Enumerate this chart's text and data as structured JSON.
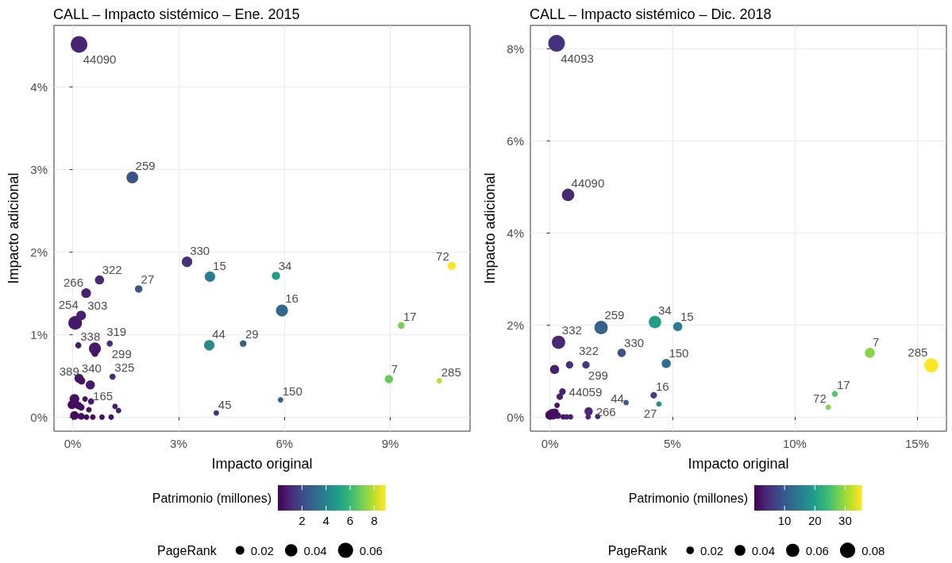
{
  "chart_data": [
    {
      "type": "bubble",
      "title": "CALL – Impacto sistémico – Ene. 2015",
      "xlabel": "Impacto original",
      "ylabel": "Impacto adicional",
      "clabel": "Patrimonio (millones)",
      "legend_title": "PageRank",
      "xlim": [
        -0.53,
        11.26
      ],
      "ylim": [
        -0.17,
        4.74
      ],
      "xticks": [
        {
          "value": 0,
          "label": "0%"
        },
        {
          "value": 3,
          "label": "3%"
        },
        {
          "value": 6,
          "label": "6%"
        },
        {
          "value": 9,
          "label": "9%"
        }
      ],
      "yticks": [
        {
          "value": 0,
          "label": "0%"
        },
        {
          "value": 1,
          "label": "1%"
        },
        {
          "value": 2,
          "label": "2%"
        },
        {
          "value": 3,
          "label": "3%"
        },
        {
          "value": 4,
          "label": "4%"
        }
      ],
      "grid": true,
      "clim": [
        0,
        8.9
      ],
      "cticks": [
        2,
        4,
        6,
        8
      ],
      "size_legend": [
        0.02,
        0.04,
        0.06
      ],
      "x": [
        0.18,
        1.69,
        3.24,
        0.76,
        0.38,
        1.87,
        3.89,
        5.76,
        5.93,
        0.24,
        0.07,
        0.16,
        0.63,
        0.63,
        1.05,
        3.87,
        4.83,
        0.18,
        0.25,
        0.5,
        1.13,
        4.07,
        5.89,
        10.74,
        9.31,
        8.96,
        10.39,
        0.05,
        -0.02,
        0.16,
        0.35,
        0.52,
        0.46,
        1.2,
        1.3,
        0.05,
        0.24,
        0.39,
        0.57,
        0.83,
        1.09,
        0.24
      ],
      "values": [
        4.51,
        2.9,
        1.88,
        1.66,
        1.5,
        1.55,
        1.7,
        1.71,
        1.29,
        1.23,
        1.14,
        0.87,
        0.83,
        0.77,
        0.89,
        0.87,
        0.89,
        0.47,
        0.44,
        0.39,
        0.49,
        0.05,
        0.21,
        1.83,
        1.11,
        0.46,
        0.44,
        0.22,
        0.15,
        0.14,
        0.22,
        0.19,
        0.09,
        0.13,
        0.08,
        0.02,
        0.01,
        0.0,
        0.0,
        0.0,
        0.0,
        0.12
      ],
      "sizes": [
        0.073,
        0.036,
        0.029,
        0.022,
        0.025,
        0.015,
        0.029,
        0.018,
        0.038,
        0.025,
        0.049,
        0.01,
        0.038,
        0.012,
        0.01,
        0.029,
        0.012,
        0.022,
        0.015,
        0.022,
        0.01,
        0.008,
        0.008,
        0.018,
        0.012,
        0.018,
        0.008,
        0.025,
        0.02,
        0.015,
        0.008,
        0.01,
        0.008,
        0.008,
        0.008,
        0.02,
        0.012,
        0.008,
        0.008,
        0.008,
        0.008,
        0.012
      ],
      "cvalues": [
        0.9,
        2.3,
        1.3,
        1.0,
        0.8,
        2.5,
        3.8,
        5.0,
        3.0,
        0.8,
        0.6,
        0.6,
        0.6,
        0.4,
        1.2,
        4.3,
        2.8,
        0.5,
        0.5,
        0.6,
        1.0,
        1.3,
        2.8,
        8.9,
        7.0,
        6.8,
        8.0,
        0.4,
        0.3,
        0.3,
        0.5,
        0.6,
        0.4,
        0.7,
        0.8,
        0.2,
        0.3,
        0.2,
        0.3,
        0.4,
        0.4,
        0.3
      ],
      "annotations": [
        {
          "text": "44090",
          "x": 0.18,
          "y": 4.51
        },
        {
          "text": "259",
          "x": 1.69,
          "y": 2.9
        },
        {
          "text": "330",
          "x": 3.24,
          "y": 1.88
        },
        {
          "text": "322",
          "x": 0.76,
          "y": 1.66
        },
        {
          "text": "266",
          "x": 0.38,
          "y": 1.5
        },
        {
          "text": "27",
          "x": 1.87,
          "y": 1.55
        },
        {
          "text": "15",
          "x": 3.89,
          "y": 1.7
        },
        {
          "text": "34",
          "x": 5.76,
          "y": 1.71
        },
        {
          "text": "16",
          "x": 5.93,
          "y": 1.29
        },
        {
          "text": "254",
          "x": 0.24,
          "y": 1.23
        },
        {
          "text": "303",
          "x": 0.07,
          "y": 1.14
        },
        {
          "text": "338",
          "x": 0.16,
          "y": 0.87
        },
        {
          "text": "319",
          "x": 0.63,
          "y": 0.83
        },
        {
          "text": "299",
          "x": 1.05,
          "y": 0.89
        },
        {
          "text": "44",
          "x": 3.87,
          "y": 0.87
        },
        {
          "text": "29",
          "x": 4.83,
          "y": 0.89
        },
        {
          "text": "340",
          "x": 0.18,
          "y": 0.47
        },
        {
          "text": "389",
          "x": 0.25,
          "y": 0.44
        },
        {
          "text": "165",
          "x": 0.5,
          "y": 0.39
        },
        {
          "text": "325",
          "x": 1.13,
          "y": 0.49
        },
        {
          "text": "45",
          "x": 4.07,
          "y": 0.05
        },
        {
          "text": "150",
          "x": 5.89,
          "y": 0.21
        },
        {
          "text": "72",
          "x": 10.74,
          "y": 1.83
        },
        {
          "text": "17",
          "x": 9.31,
          "y": 1.11
        },
        {
          "text": "7",
          "x": 8.96,
          "y": 0.46
        },
        {
          "text": "285",
          "x": 10.39,
          "y": 0.44
        }
      ]
    },
    {
      "type": "bubble",
      "title": "CALL – Impacto sistémico – Dic. 2018",
      "xlabel": "Impacto original",
      "ylabel": "Impacto adicional",
      "clabel": "Patrimonio (millones)",
      "legend_title": "PageRank",
      "xlim": [
        -0.8,
        16.2
      ],
      "ylim": [
        -0.31,
        8.5
      ],
      "xticks": [
        {
          "value": 0,
          "label": "0%"
        },
        {
          "value": 5,
          "label": "5%"
        },
        {
          "value": 10,
          "label": "10%"
        },
        {
          "value": 15,
          "label": "15%"
        }
      ],
      "yticks": [
        {
          "value": 0,
          "label": "0%"
        },
        {
          "value": 2,
          "label": "2%"
        },
        {
          "value": 4,
          "label": "4%"
        },
        {
          "value": 6,
          "label": "6%"
        },
        {
          "value": 8,
          "label": "8%"
        }
      ],
      "grid": true,
      "clim": [
        0,
        35.4
      ],
      "cticks": [
        10,
        20,
        30
      ],
      "size_legend": [
        0.02,
        0.04,
        0.06,
        0.08
      ],
      "x": [
        0.27,
        0.74,
        2.09,
        4.29,
        5.22,
        0.35,
        2.93,
        4.75,
        0.8,
        1.47,
        0.19,
        0.51,
        0.4,
        4.24,
        3.11,
        4.45,
        1.58,
        1.56,
        1.95,
        13.07,
        15.58,
        11.64,
        11.37,
        0.29,
        0.11,
        0.0,
        0.32,
        0.54,
        0.68,
        0.84,
        0.2
      ],
      "values": [
        8.11,
        4.82,
        1.94,
        2.06,
        1.96,
        1.62,
        1.39,
        1.16,
        1.13,
        1.13,
        1.03,
        0.55,
        0.44,
        0.47,
        0.31,
        0.28,
        0.12,
        0.0,
        0.01,
        1.39,
        1.12,
        0.5,
        0.21,
        0.25,
        0.06,
        0.04,
        0.03,
        0.0,
        0.0,
        0.0,
        0.1
      ],
      "sizes": [
        0.095,
        0.053,
        0.061,
        0.053,
        0.029,
        0.061,
        0.024,
        0.029,
        0.019,
        0.019,
        0.029,
        0.015,
        0.015,
        0.015,
        0.01,
        0.01,
        0.024,
        0.01,
        0.01,
        0.034,
        0.068,
        0.012,
        0.01,
        0.01,
        0.04,
        0.03,
        0.015,
        0.01,
        0.01,
        0.01,
        0.02
      ],
      "cvalues": [
        5,
        4,
        11,
        20,
        15,
        4,
        9,
        13,
        5,
        6,
        3,
        3,
        3,
        7,
        10,
        18,
        4,
        4,
        4,
        29,
        35.4,
        26,
        29,
        2,
        2,
        1,
        2,
        2,
        3,
        3,
        1.5
      ],
      "annotations": [
        {
          "text": "44093",
          "x": 0.27,
          "y": 8.11
        },
        {
          "text": "44090",
          "x": 0.74,
          "y": 4.82
        },
        {
          "text": "259",
          "x": 2.09,
          "y": 1.94
        },
        {
          "text": "34",
          "x": 4.29,
          "y": 2.06
        },
        {
          "text": "15",
          "x": 5.22,
          "y": 1.96
        },
        {
          "text": "332",
          "x": 0.35,
          "y": 1.62
        },
        {
          "text": "330",
          "x": 2.93,
          "y": 1.39
        },
        {
          "text": "150",
          "x": 4.75,
          "y": 1.16
        },
        {
          "text": "322",
          "x": 0.8,
          "y": 1.13
        },
        {
          "text": "299",
          "x": 1.47,
          "y": 1.13
        },
        {
          "text": "44059",
          "x": 0.51,
          "y": 0.55
        },
        {
          "text": "16",
          "x": 4.24,
          "y": 0.47
        },
        {
          "text": "27",
          "x": 4.45,
          "y": 0.28
        },
        {
          "text": "266",
          "x": 1.58,
          "y": 0.12
        },
        {
          "text": "44",
          "x": 1.95,
          "y": 0.01
        },
        {
          "text": "7",
          "x": 13.07,
          "y": 1.39
        },
        {
          "text": "285",
          "x": 15.58,
          "y": 1.12
        },
        {
          "text": "17",
          "x": 11.64,
          "y": 0.5
        },
        {
          "text": "72",
          "x": 11.37,
          "y": 0.21
        }
      ]
    }
  ]
}
